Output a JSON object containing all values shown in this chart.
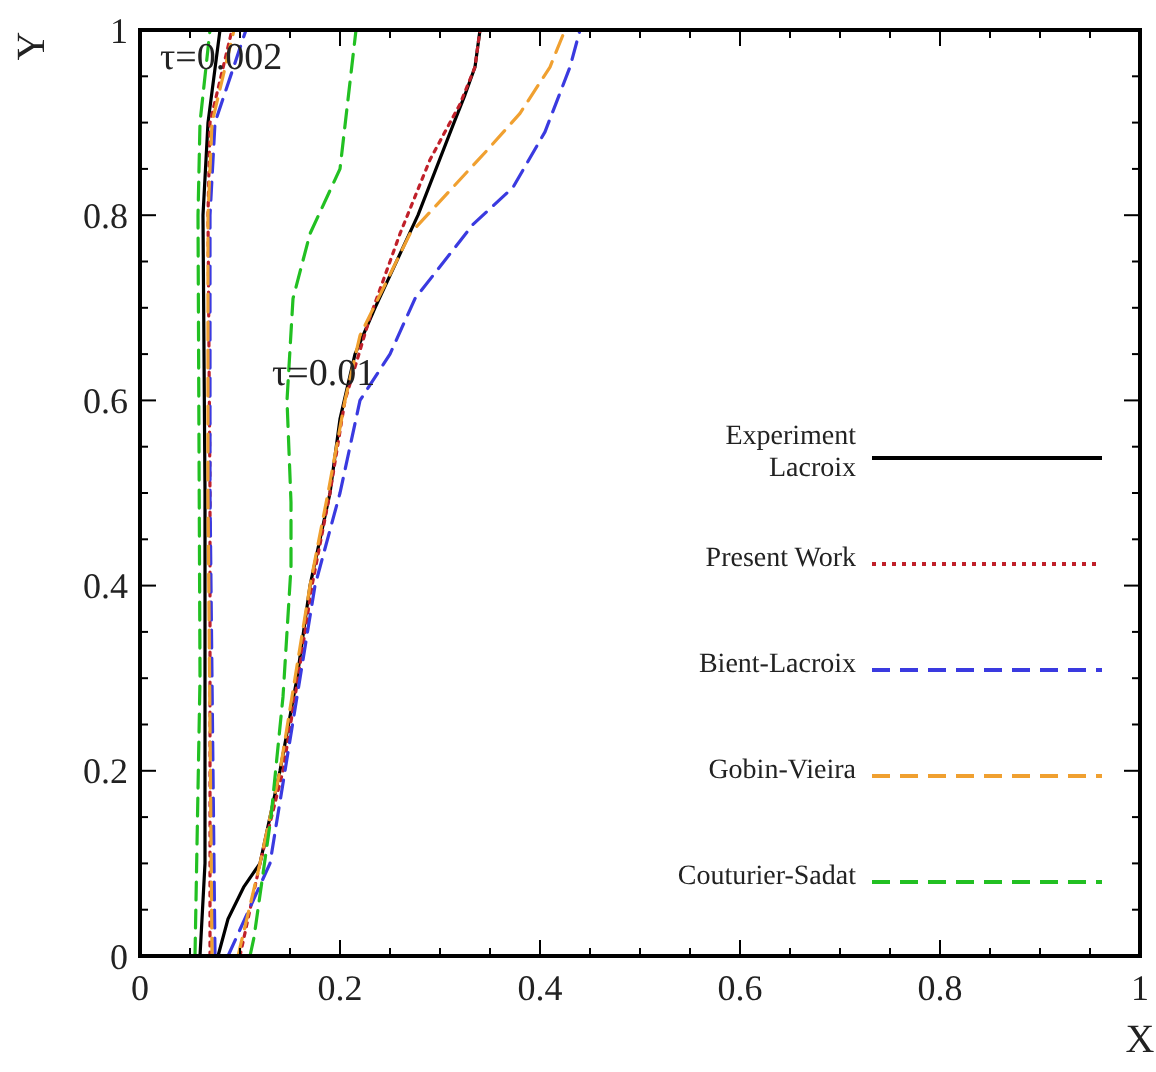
{
  "chart_data": {
    "type": "line",
    "xlabel": "X",
    "ylabel": "Y",
    "xlim": [
      0,
      1
    ],
    "ylim": [
      0,
      1
    ],
    "xticks": [
      0,
      0.2,
      0.4,
      0.6,
      0.8,
      1
    ],
    "yticks": [
      0,
      0.2,
      0.4,
      0.6,
      0.8,
      1
    ],
    "grid": false,
    "legend": "right",
    "marker": "none",
    "annotations": [
      "τ=0.002",
      "τ=0.01"
    ],
    "series": [
      {
        "name": "Experiment Lacroix",
        "color": "#000000",
        "line_style": "solid",
        "x": [
          0.06,
          0.065,
          0.065,
          0.063,
          0.068,
          0.08
        ],
        "values": [
          0,
          0.1,
          0.5,
          0.8,
          0.9,
          1
        ]
      },
      {
        "name": "Present Work",
        "color": "#c0202a",
        "line_style": "dotted",
        "x": [
          0.07,
          0.07,
          0.068,
          0.07,
          0.092
        ],
        "values": [
          0,
          0.5,
          0.8,
          0.9,
          1
        ]
      },
      {
        "name": "Bient-Lacroix",
        "color": "#3a3ae0",
        "line_style": "dashed",
        "x": [
          0.075,
          0.07,
          0.07,
          0.075,
          0.106
        ],
        "values": [
          0,
          0.5,
          0.8,
          0.9,
          1
        ]
      },
      {
        "name": "Gobin-Vieira",
        "color": "#f0a030",
        "line_style": "dashed",
        "x": [
          0.072,
          0.068,
          0.068,
          0.072,
          0.094
        ],
        "values": [
          0,
          0.5,
          0.8,
          0.9,
          1
        ]
      },
      {
        "name": "Couturier-Sadat",
        "color": "#22c022",
        "line_style": "dashed",
        "x": [
          0.055,
          0.06,
          0.058,
          0.06,
          0.07
        ],
        "values": [
          0,
          0.3,
          0.8,
          0.9,
          1
        ]
      },
      {
        "color": "#000000",
        "line_style": "solid",
        "x": [
          0.078,
          0.088,
          0.104,
          0.12,
          0.14,
          0.157,
          0.17,
          0.19,
          0.2,
          0.215,
          0.235,
          0.278,
          0.314,
          0.325,
          0.335,
          0.34
        ],
        "values": [
          0,
          0.04,
          0.075,
          0.1,
          0.2,
          0.3,
          0.4,
          0.5,
          0.58,
          0.65,
          0.7,
          0.8,
          0.9,
          0.93,
          0.96,
          1
        ]
      },
      {
        "color": "#c0202a",
        "line_style": "dotted",
        "x": [
          0.1,
          0.12,
          0.143,
          0.158,
          0.172,
          0.19,
          0.205,
          0.23,
          0.26,
          0.29,
          0.32,
          0.335,
          0.34
        ],
        "values": [
          0,
          0.1,
          0.2,
          0.3,
          0.4,
          0.5,
          0.6,
          0.69,
          0.78,
          0.86,
          0.92,
          0.96,
          1
        ]
      },
      {
        "color": "#3a3ae0",
        "line_style": "dashed",
        "x": [
          0.088,
          0.13,
          0.145,
          0.16,
          0.175,
          0.2,
          0.22,
          0.25,
          0.275,
          0.333,
          0.373,
          0.405,
          0.43,
          0.44
        ],
        "values": [
          0,
          0.1,
          0.2,
          0.3,
          0.4,
          0.5,
          0.6,
          0.65,
          0.71,
          0.79,
          0.83,
          0.89,
          0.96,
          1
        ]
      },
      {
        "color": "#f0a030",
        "line_style": "dashed",
        "x": [
          0.098,
          0.12,
          0.14,
          0.155,
          0.17,
          0.188,
          0.205,
          0.22,
          0.27,
          0.347,
          0.38,
          0.41,
          0.425
        ],
        "values": [
          0,
          0.1,
          0.2,
          0.3,
          0.4,
          0.5,
          0.6,
          0.67,
          0.78,
          0.87,
          0.91,
          0.96,
          1
        ]
      },
      {
        "color": "#22c022",
        "line_style": "dashed",
        "x": [
          0.11,
          0.114,
          0.131,
          0.143,
          0.151,
          0.151,
          0.147,
          0.153,
          0.17,
          0.2,
          0.216
        ],
        "values": [
          0,
          0.02,
          0.15,
          0.28,
          0.42,
          0.49,
          0.6,
          0.71,
          0.78,
          0.85,
          1
        ]
      }
    ]
  }
}
